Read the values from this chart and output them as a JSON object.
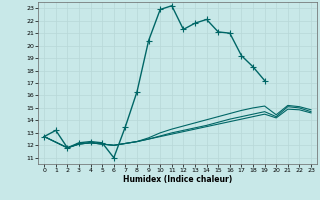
{
  "xlabel": "Humidex (Indice chaleur)",
  "bg_color": "#c8e8e8",
  "grid_color": "#b8d8d8",
  "line_color": "#006666",
  "xlim": [
    -0.5,
    23.5
  ],
  "ylim": [
    10.5,
    23.5
  ],
  "xticks": [
    0,
    1,
    2,
    3,
    4,
    5,
    6,
    7,
    8,
    9,
    10,
    11,
    12,
    13,
    14,
    15,
    16,
    17,
    18,
    19,
    20,
    21,
    22,
    23
  ],
  "yticks": [
    11,
    12,
    13,
    14,
    15,
    16,
    17,
    18,
    19,
    20,
    21,
    22,
    23
  ],
  "series": [
    {
      "x": [
        0,
        1,
        2,
        3,
        4,
        5,
        6,
        7,
        8,
        9,
        10,
        11,
        12,
        13,
        14,
        15,
        16,
        17,
        18,
        19
      ],
      "y": [
        12.7,
        13.2,
        11.8,
        12.2,
        12.3,
        12.2,
        11.0,
        13.5,
        16.3,
        20.4,
        22.9,
        23.2,
        21.3,
        21.8,
        22.1,
        21.1,
        21.0,
        19.2,
        18.3,
        17.2
      ],
      "has_marker": true,
      "marker": "+",
      "markersize": 4,
      "linewidth": 1.0
    },
    {
      "x": [
        0,
        2,
        3,
        4,
        5,
        6,
        7,
        8,
        9,
        10,
        11,
        12,
        13,
        14,
        15,
        16,
        17,
        18,
        19,
        20,
        21,
        22,
        23
      ],
      "y": [
        12.7,
        11.8,
        12.1,
        12.2,
        12.1,
        12.0,
        12.15,
        12.3,
        12.5,
        12.75,
        13.0,
        13.2,
        13.4,
        13.6,
        13.85,
        14.1,
        14.3,
        14.5,
        14.7,
        14.3,
        15.1,
        15.0,
        14.7
      ],
      "has_marker": false,
      "linewidth": 0.8
    },
    {
      "x": [
        0,
        2,
        3,
        4,
        5,
        6,
        7,
        8,
        9,
        10,
        11,
        12,
        13,
        14,
        15,
        16,
        17,
        18,
        19,
        20,
        21,
        22,
        23
      ],
      "y": [
        12.7,
        11.8,
        12.1,
        12.2,
        12.1,
        12.0,
        12.15,
        12.3,
        12.6,
        13.0,
        13.3,
        13.55,
        13.8,
        14.05,
        14.3,
        14.55,
        14.8,
        15.0,
        15.15,
        14.45,
        15.2,
        15.1,
        14.85
      ],
      "has_marker": false,
      "linewidth": 0.8
    },
    {
      "x": [
        0,
        2,
        3,
        4,
        5,
        6,
        7,
        8,
        9,
        10,
        11,
        12,
        13,
        14,
        15,
        16,
        17,
        18,
        19,
        20,
        21,
        22,
        23
      ],
      "y": [
        12.7,
        11.8,
        12.1,
        12.2,
        12.1,
        12.0,
        12.15,
        12.3,
        12.5,
        12.7,
        12.9,
        13.1,
        13.3,
        13.5,
        13.7,
        13.9,
        14.1,
        14.3,
        14.5,
        14.2,
        14.9,
        14.85,
        14.6
      ],
      "has_marker": false,
      "linewidth": 0.8
    }
  ]
}
